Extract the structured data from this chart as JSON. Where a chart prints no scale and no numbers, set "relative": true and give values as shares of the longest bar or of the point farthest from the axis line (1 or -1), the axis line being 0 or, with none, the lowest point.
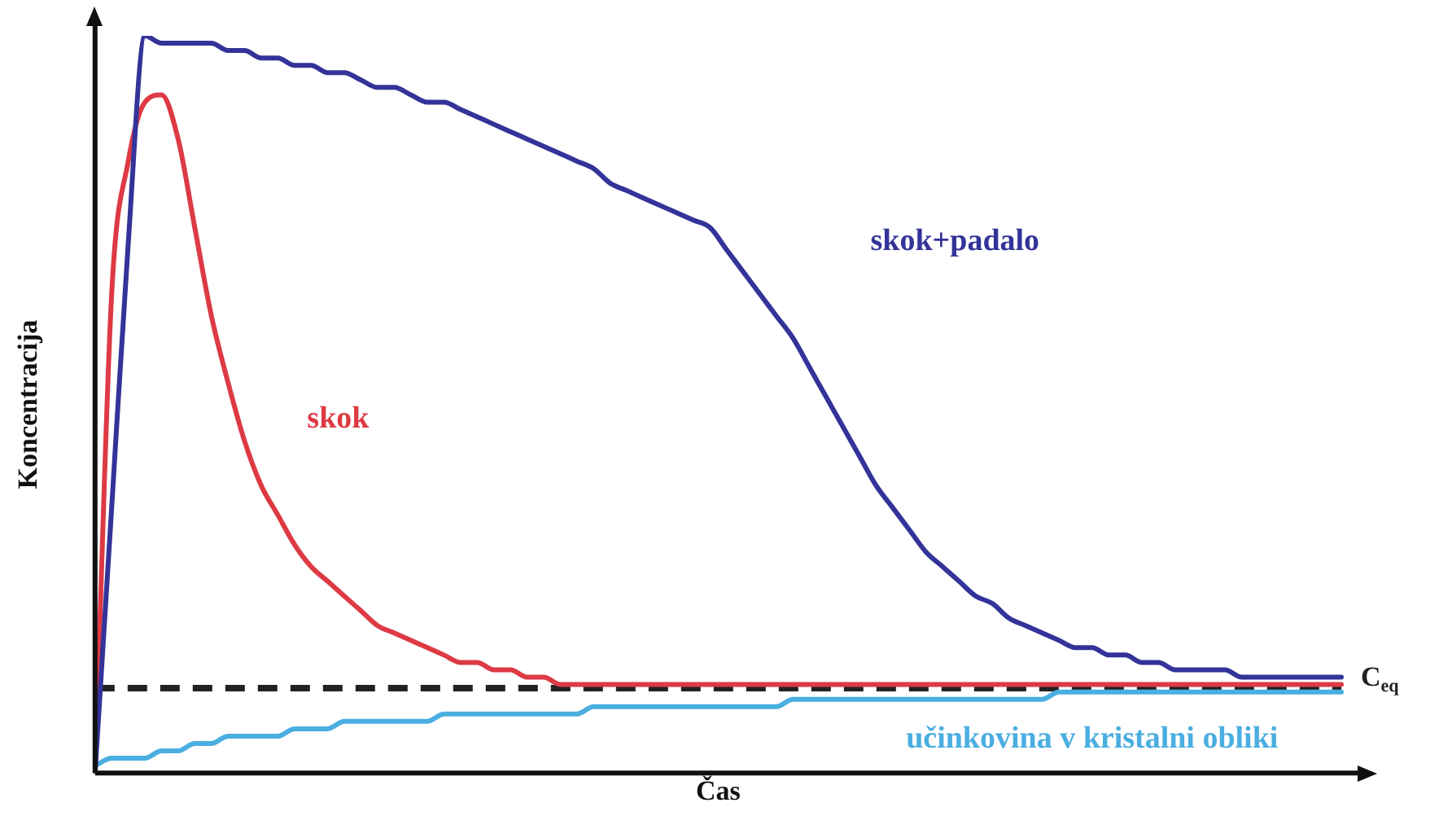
{
  "chart_data": {
    "type": "line",
    "relative": true,
    "xlabel": "Čas",
    "ylabel": "Koncentracija",
    "legend": false,
    "grid": false,
    "tick_labels": false,
    "marker": "none",
    "line_style": "solid",
    "categories": [
      null,
      null,
      null,
      null,
      null,
      null,
      null,
      null,
      null,
      null,
      null,
      null,
      null,
      null,
      null,
      null,
      null,
      null,
      null,
      null,
      null,
      null,
      null,
      null,
      null,
      null,
      null,
      null,
      null,
      null,
      null,
      null,
      null,
      null,
      null,
      null,
      null,
      null,
      null,
      null,
      null,
      null,
      null,
      null,
      null,
      null,
      null,
      null,
      null,
      null,
      null,
      null,
      null,
      null,
      null,
      null,
      null,
      null,
      null,
      null,
      null,
      null,
      null,
      null,
      null,
      null,
      null,
      null,
      null,
      null,
      null,
      null,
      null,
      null,
      null,
      null
    ],
    "series": [
      {
        "name": "skok+padalo",
        "color": "#333399",
        "values": [
          0,
          0.36,
          0.72,
          1.0,
          0.99,
          0.99,
          0.99,
          0.99,
          0.98,
          0.98,
          0.97,
          0.97,
          0.96,
          0.96,
          0.95,
          0.95,
          0.94,
          0.93,
          0.93,
          0.92,
          0.91,
          0.91,
          0.9,
          0.89,
          0.88,
          0.87,
          0.86,
          0.85,
          0.84,
          0.83,
          0.82,
          0.8,
          0.79,
          0.78,
          0.77,
          0.76,
          0.75,
          0.74,
          0.71,
          0.68,
          0.65,
          0.62,
          0.59,
          0.55,
          0.51,
          0.47,
          0.43,
          0.39,
          0.36,
          0.33,
          0.3,
          0.28,
          0.26,
          0.24,
          0.23,
          0.21,
          0.2,
          0.19,
          0.18,
          0.17,
          0.17,
          0.16,
          0.16,
          0.15,
          0.15,
          0.14,
          0.14,
          0.14,
          0.14,
          0.13,
          0.13,
          0.13,
          0.13,
          0.13,
          0.13,
          0.13
        ]
      },
      {
        "name": "skok",
        "color": "#dd3a44",
        "values": [
          0,
          0.65,
          0.83,
          0.91,
          0.92,
          0.86,
          0.74,
          0.62,
          0.53,
          0.45,
          0.39,
          0.35,
          0.31,
          0.28,
          0.26,
          0.24,
          0.22,
          0.2,
          0.19,
          0.18,
          0.17,
          0.16,
          0.15,
          0.15,
          0.14,
          0.14,
          0.13,
          0.13,
          0.12,
          0.12,
          0.12,
          0.12,
          0.12,
          0.12,
          0.12,
          0.12,
          0.12,
          0.12,
          0.12,
          0.12,
          0.12,
          0.12,
          0.12,
          0.12,
          0.12,
          0.12,
          0.12,
          0.12,
          0.12,
          0.12,
          0.12,
          0.12,
          0.12,
          0.12,
          0.12,
          0.12,
          0.12,
          0.12,
          0.12,
          0.12,
          0.12,
          0.12,
          0.12,
          0.12,
          0.12,
          0.12,
          0.12,
          0.12,
          0.12,
          0.12,
          0.12,
          0.12,
          0.12,
          0.12,
          0.12,
          0.12
        ]
      },
      {
        "name": "učinkovina v kristalni obliki",
        "color": "#4aaee0",
        "values": [
          0.01,
          0.02,
          0.02,
          0.02,
          0.03,
          0.03,
          0.04,
          0.04,
          0.05,
          0.05,
          0.05,
          0.05,
          0.06,
          0.06,
          0.06,
          0.07,
          0.07,
          0.07,
          0.07,
          0.07,
          0.07,
          0.08,
          0.08,
          0.08,
          0.08,
          0.08,
          0.08,
          0.08,
          0.08,
          0.08,
          0.09,
          0.09,
          0.09,
          0.09,
          0.09,
          0.09,
          0.09,
          0.09,
          0.09,
          0.09,
          0.09,
          0.09,
          0.1,
          0.1,
          0.1,
          0.1,
          0.1,
          0.1,
          0.1,
          0.1,
          0.1,
          0.1,
          0.1,
          0.1,
          0.1,
          0.1,
          0.1,
          0.1,
          0.11,
          0.11,
          0.11,
          0.11,
          0.11,
          0.11,
          0.11,
          0.11,
          0.11,
          0.11,
          0.11,
          0.11,
          0.11,
          0.11,
          0.11,
          0.11,
          0.11,
          0.11
        ]
      }
    ],
    "ref_lines": [
      {
        "axis": "y",
        "value": 0.115,
        "label": "C$_{eq}$",
        "color": "#222222",
        "line_style": "dashed"
      }
    ]
  }
}
